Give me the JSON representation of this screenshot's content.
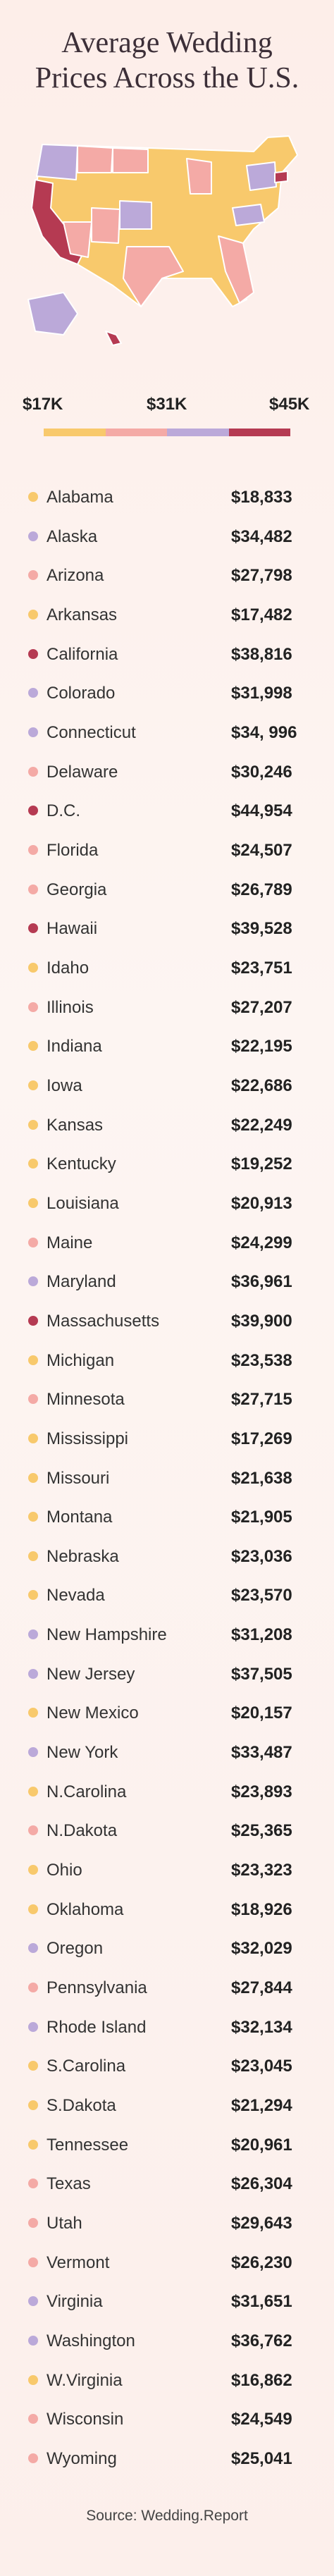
{
  "title_lines": [
    "Average Wedding",
    "Prices Across the U.S."
  ],
  "legend": {
    "labels": [
      "$17K",
      "$31K",
      "$45K"
    ],
    "colors": [
      "#f8c96c",
      "#f4aaa6",
      "#bba9d9",
      "#b53a52"
    ]
  },
  "rows": [
    {
      "state": "Alabama",
      "price": "$18,833",
      "color": "#f8c96c"
    },
    {
      "state": "Alaska",
      "price": "$34,482",
      "color": "#bba9d9"
    },
    {
      "state": "Arizona",
      "price": "$27,798",
      "color": "#f4aaa6"
    },
    {
      "state": "Arkansas",
      "price": "$17,482",
      "color": "#f8c96c"
    },
    {
      "state": "California",
      "price": "$38,816",
      "color": "#b53a52"
    },
    {
      "state": "Colorado",
      "price": "$31,998",
      "color": "#bba9d9"
    },
    {
      "state": "Connecticut",
      "price": "$34, 996",
      "color": "#bba9d9"
    },
    {
      "state": "Delaware",
      "price": "$30,246",
      "color": "#f4aaa6"
    },
    {
      "state": "D.C.",
      "price": "$44,954",
      "color": "#b53a52"
    },
    {
      "state": "Florida",
      "price": "$24,507",
      "color": "#f4aaa6"
    },
    {
      "state": "Georgia",
      "price": "$26,789",
      "color": "#f4aaa6"
    },
    {
      "state": "Hawaii",
      "price": "$39,528",
      "color": "#b53a52"
    },
    {
      "state": "Idaho",
      "price": "$23,751",
      "color": "#f8c96c"
    },
    {
      "state": "Illinois",
      "price": "$27,207",
      "color": "#f4aaa6"
    },
    {
      "state": "Indiana",
      "price": "$22,195",
      "color": "#f8c96c"
    },
    {
      "state": "Iowa",
      "price": "$22,686",
      "color": "#f8c96c"
    },
    {
      "state": "Kansas",
      "price": "$22,249",
      "color": "#f8c96c"
    },
    {
      "state": "Kentucky",
      "price": "$19,252",
      "color": "#f8c96c"
    },
    {
      "state": "Louisiana",
      "price": "$20,913",
      "color": "#f8c96c"
    },
    {
      "state": "Maine",
      "price": "$24,299",
      "color": "#f4aaa6"
    },
    {
      "state": "Maryland",
      "price": "$36,961",
      "color": "#bba9d9"
    },
    {
      "state": "Massachusetts",
      "price": "$39,900",
      "color": "#b53a52"
    },
    {
      "state": "Michigan",
      "price": "$23,538",
      "color": "#f8c96c"
    },
    {
      "state": "Minnesota",
      "price": "$27,715",
      "color": "#f4aaa6"
    },
    {
      "state": "Mississippi",
      "price": "$17,269",
      "color": "#f8c96c"
    },
    {
      "state": "Missouri",
      "price": "$21,638",
      "color": "#f8c96c"
    },
    {
      "state": "Montana",
      "price": "$21,905",
      "color": "#f8c96c"
    },
    {
      "state": "Nebraska",
      "price": "$23,036",
      "color": "#f8c96c"
    },
    {
      "state": "Nevada",
      "price": "$23,570",
      "color": "#f8c96c"
    },
    {
      "state": "New Hampshire",
      "price": "$31,208",
      "color": "#bba9d9"
    },
    {
      "state": "New Jersey",
      "price": "$37,505",
      "color": "#bba9d9"
    },
    {
      "state": "New Mexico",
      "price": "$20,157",
      "color": "#f8c96c"
    },
    {
      "state": "New York",
      "price": "$33,487",
      "color": "#bba9d9"
    },
    {
      "state": "N.Carolina",
      "price": "$23,893",
      "color": "#f8c96c"
    },
    {
      "state": "N.Dakota",
      "price": "$25,365",
      "color": "#f4aaa6"
    },
    {
      "state": "Ohio",
      "price": "$23,323",
      "color": "#f8c96c"
    },
    {
      "state": "Oklahoma",
      "price": "$18,926",
      "color": "#f8c96c"
    },
    {
      "state": "Oregon",
      "price": "$32,029",
      "color": "#bba9d9"
    },
    {
      "state": "Pennsylvania",
      "price": "$27,844",
      "color": "#f4aaa6"
    },
    {
      "state": "Rhode Island",
      "price": "$32,134",
      "color": "#bba9d9"
    },
    {
      "state": "S.Carolina",
      "price": "$23,045",
      "color": "#f8c96c"
    },
    {
      "state": "S.Dakota",
      "price": "$21,294",
      "color": "#f8c96c"
    },
    {
      "state": "Tennessee",
      "price": "$20,961",
      "color": "#f8c96c"
    },
    {
      "state": "Texas",
      "price": "$26,304",
      "color": "#f4aaa6"
    },
    {
      "state": "Utah",
      "price": "$29,643",
      "color": "#f4aaa6"
    },
    {
      "state": "Vermont",
      "price": "$26,230",
      "color": "#f4aaa6"
    },
    {
      "state": "Virginia",
      "price": "$31,651",
      "color": "#bba9d9"
    },
    {
      "state": "Washington",
      "price": "$36,762",
      "color": "#bba9d9"
    },
    {
      "state": "W.Virginia",
      "price": "$16,862",
      "color": "#f8c96c"
    },
    {
      "state": "Wisconsin",
      "price": "$24,549",
      "color": "#f4aaa6"
    },
    {
      "state": "Wyoming",
      "price": "$25,041",
      "color": "#f4aaa6"
    }
  ],
  "source": "Source: Wedding.Report"
}
